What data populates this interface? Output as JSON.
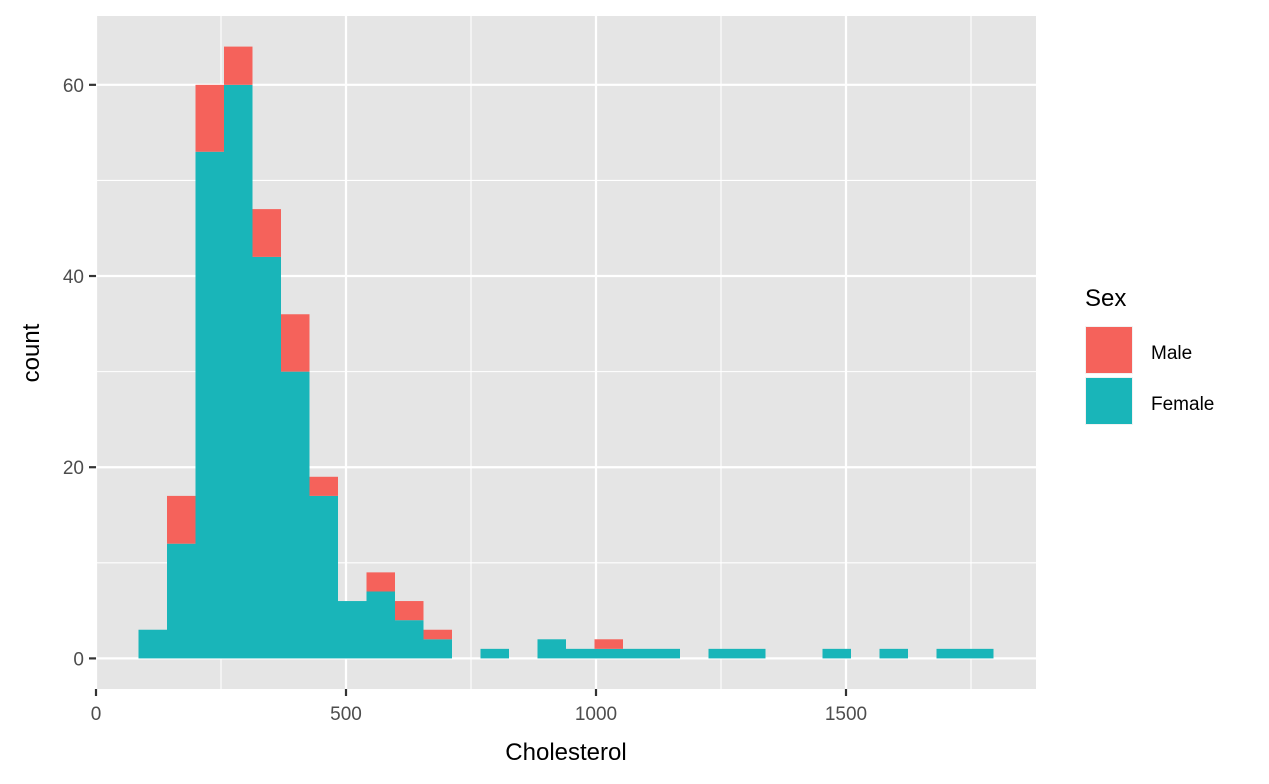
{
  "chart_data": {
    "type": "bar",
    "subtype": "stacked-histogram",
    "title": "",
    "xlabel": "Cholesterol",
    "ylabel": "count",
    "xlim": [
      0,
      1880
    ],
    "ylim": [
      -3.2,
      67.2
    ],
    "x_ticks": [
      0,
      500,
      1000,
      1500
    ],
    "x_tick_labels": [
      "0",
      "500",
      "1000",
      "1500"
    ],
    "y_ticks": [
      0,
      20,
      40,
      60
    ],
    "y_tick_labels": [
      "0",
      "20",
      "40",
      "60"
    ],
    "grid": true,
    "legend": {
      "title": "Sex",
      "position": "right"
    },
    "bin_width": 57,
    "bins_x_start": [
      85,
      142,
      199,
      256,
      313,
      370,
      427,
      484,
      541,
      598,
      655,
      769,
      883,
      940,
      997,
      1054,
      1111,
      1225,
      1282,
      1453,
      1567,
      1681,
      1738
    ],
    "series": [
      {
        "name": "Female",
        "color": "#19B5B9",
        "values": [
          3,
          12,
          53,
          60,
          42,
          30,
          17,
          6,
          7,
          4,
          2,
          1,
          2,
          1,
          1,
          1,
          1,
          1,
          1,
          1,
          1,
          1,
          1
        ]
      },
      {
        "name": "Male",
        "color": "#F5625B",
        "values": [
          0,
          5,
          7,
          4,
          5,
          6,
          2,
          0,
          2,
          2,
          1,
          0,
          0,
          0,
          1,
          0,
          0,
          0,
          0,
          0,
          0,
          0,
          0
        ]
      }
    ],
    "legend_order": [
      "Male",
      "Female"
    ],
    "colors": {
      "panel": "#E5E5E5",
      "grid": "#FFFFFF"
    }
  }
}
